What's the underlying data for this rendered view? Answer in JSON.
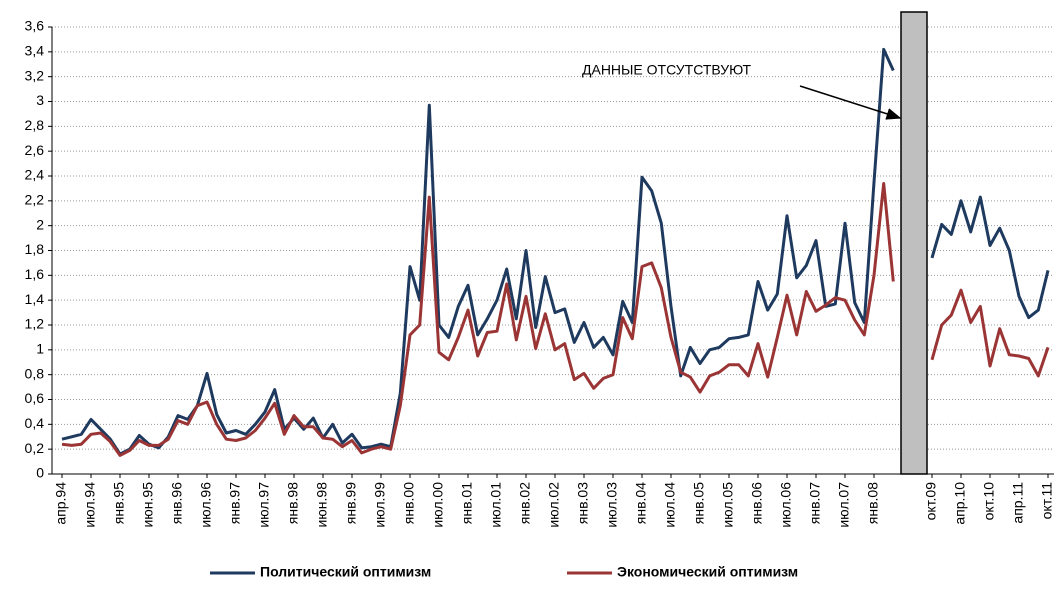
{
  "chart_data": {
    "type": "line",
    "categories": [
      "апр.94",
      null,
      null,
      "июл.94",
      null,
      null,
      "янв.95",
      null,
      null,
      "июн.95",
      null,
      null,
      "янв.96",
      null,
      null,
      "июл.96",
      null,
      null,
      "янв.97",
      null,
      null,
      "июл.97",
      null,
      null,
      "янв.98",
      null,
      null,
      "июн.98",
      null,
      null,
      "янв.99",
      null,
      null,
      "июл.99",
      null,
      null,
      "янв.00",
      null,
      null,
      "июл.00",
      null,
      null,
      "янв.01",
      null,
      null,
      "июл.01",
      null,
      null,
      "янв.02",
      null,
      null,
      "июл.02",
      null,
      null,
      "янв.03",
      null,
      null,
      "июл.03",
      null,
      null,
      "янв.04",
      null,
      null,
      "июл.04",
      null,
      null,
      "янв.05",
      null,
      null,
      "июл.05",
      null,
      null,
      "янв.06",
      null,
      null,
      "июл.06",
      null,
      null,
      "янв.07",
      null,
      null,
      "июл.07",
      null,
      null,
      "янв.08",
      null,
      null,
      null,
      null,
      null,
      "окт.09",
      null,
      null,
      "апр.10",
      null,
      null,
      "окт.10",
      null,
      null,
      "апр.11",
      null,
      null,
      "окт.11"
    ],
    "series": [
      {
        "name": "Политический оптимизм",
        "color": "#1f3a5f",
        "values": [
          0.28,
          0.3,
          0.32,
          0.44,
          0.36,
          0.28,
          0.16,
          0.2,
          0.31,
          0.24,
          0.21,
          0.3,
          0.47,
          0.44,
          0.55,
          0.81,
          0.48,
          0.33,
          0.35,
          0.32,
          0.4,
          0.5,
          0.68,
          0.36,
          0.45,
          0.36,
          0.45,
          0.29,
          0.4,
          0.25,
          0.32,
          0.21,
          0.22,
          0.24,
          0.22,
          0.65,
          1.67,
          1.4,
          2.97,
          1.2,
          1.1,
          1.35,
          1.52,
          1.12,
          1.25,
          1.4,
          1.65,
          1.25,
          1.8,
          1.18,
          1.59,
          1.3,
          1.33,
          1.06,
          1.22,
          1.02,
          1.1,
          0.96,
          1.39,
          1.22,
          2.39,
          2.28,
          2.02,
          1.35,
          0.79,
          1.02,
          0.89,
          1.0,
          1.02,
          1.09,
          1.1,
          1.12,
          1.55,
          1.32,
          1.45,
          2.08,
          1.58,
          1.68,
          1.88,
          1.35,
          1.37,
          2.02,
          1.38,
          1.22,
          2.35,
          3.42,
          3.25,
          null,
          null,
          null,
          1.74,
          2.01,
          1.93,
          2.2,
          1.95,
          2.23,
          1.84,
          1.98,
          1.8,
          1.43,
          1.26,
          1.32,
          1.64
        ]
      },
      {
        "name": "Экономический оптимизм",
        "color": "#9b3535",
        "values": [
          0.24,
          0.23,
          0.24,
          0.32,
          0.33,
          0.26,
          0.15,
          0.19,
          0.27,
          0.23,
          0.23,
          0.28,
          0.43,
          0.4,
          0.55,
          0.58,
          0.4,
          0.28,
          0.27,
          0.29,
          0.35,
          0.45,
          0.57,
          0.32,
          0.47,
          0.38,
          0.38,
          0.29,
          0.28,
          0.22,
          0.27,
          0.17,
          0.2,
          0.22,
          0.2,
          0.55,
          1.12,
          1.2,
          2.23,
          0.98,
          0.92,
          1.1,
          1.32,
          0.95,
          1.14,
          1.15,
          1.53,
          1.08,
          1.43,
          1.01,
          1.29,
          1.0,
          1.05,
          0.76,
          0.81,
          0.69,
          0.77,
          0.8,
          1.26,
          1.09,
          1.67,
          1.7,
          1.5,
          1.1,
          0.82,
          0.78,
          0.66,
          0.79,
          0.82,
          0.88,
          0.88,
          0.79,
          1.05,
          0.78,
          1.1,
          1.44,
          1.12,
          1.47,
          1.31,
          1.36,
          1.42,
          1.4,
          1.24,
          1.12,
          1.6,
          2.34,
          1.55,
          null,
          null,
          null,
          0.92,
          1.2,
          1.28,
          1.48,
          1.22,
          1.35,
          0.87,
          1.17,
          0.96,
          0.95,
          0.93,
          0.79,
          1.02
        ]
      }
    ],
    "ylim": [
      0,
      3.6
    ],
    "yticks": [
      0,
      {
        "value": 0.2,
        "label": "0,2"
      },
      {
        "value": 0.4,
        "label": "0,4"
      },
      {
        "value": 0.6,
        "label": "0,6"
      },
      {
        "value": 0.8,
        "label": "0,8"
      },
      1,
      {
        "value": 1.2,
        "label": "1,2"
      },
      {
        "value": 1.4,
        "label": "1,4"
      },
      {
        "value": 1.6,
        "label": "1,6"
      },
      {
        "value": 1.8,
        "label": "1,8"
      },
      2,
      {
        "value": 2.2,
        "label": "2,2"
      },
      {
        "value": 2.4,
        "label": "2,4"
      },
      {
        "value": 2.6,
        "label": "2,6"
      },
      {
        "value": 2.8,
        "label": "2,8"
      },
      3,
      {
        "value": 3.2,
        "label": "3,2"
      },
      {
        "value": 3.4,
        "label": "3,4"
      },
      {
        "value": 3.6,
        "label": "3,6"
      }
    ],
    "grid": true,
    "legend": "bottom",
    "annotation": "ДАННЫЕ  ОТСУТСТВУЮТ"
  }
}
